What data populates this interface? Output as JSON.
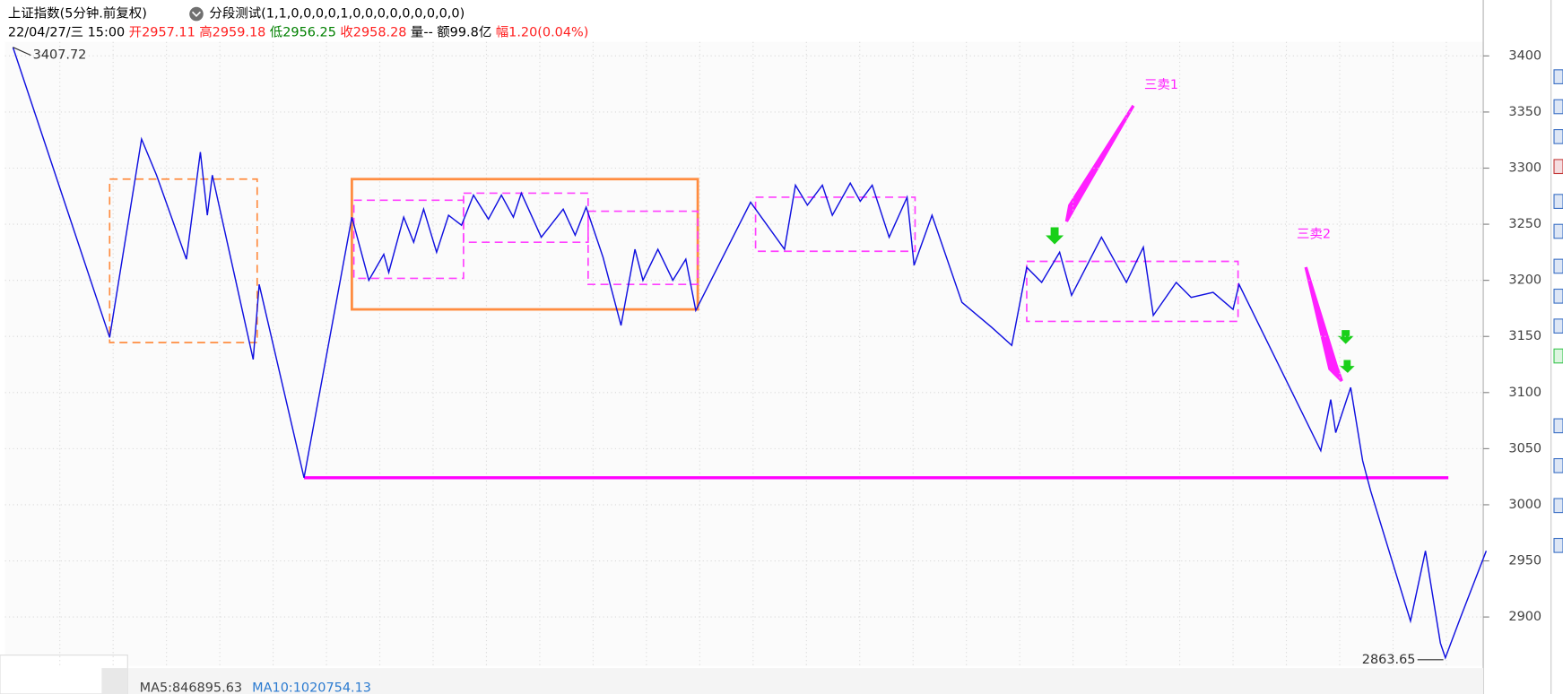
{
  "chart_data": {
    "type": "line",
    "header": {
      "title": "上证指数(5分钟.前复权)",
      "indicator": "分段测试(1,1,0,0,0,0,1,0,0,0,0,0,0,0,0,0)",
      "quote": [
        {
          "text": "22/04/27/三 15:00",
          "color": "#000000"
        },
        {
          "text": "开2957.11",
          "color": "#ff2020"
        },
        {
          "text": "高2959.18",
          "color": "#ff2020"
        },
        {
          "text": "低2956.25",
          "color": "#008000"
        },
        {
          "text": "收2958.28",
          "color": "#ff2020"
        },
        {
          "text": "量--",
          "color": "#000000"
        },
        {
          "text": "额99.8亿",
          "color": "#000000"
        },
        {
          "text": "幅1.20(0.04%)",
          "color": "#ff2020"
        }
      ]
    },
    "footer": [
      "MA5:846895.63",
      "MA10:1020754.13"
    ],
    "ylim": [
      2856.25,
      3412.5
    ],
    "yticks": [
      2900,
      2950,
      3000,
      3050,
      3100,
      3150,
      3200,
      3250,
      3300,
      3350,
      3400
    ],
    "xlim": [
      0,
      1483
    ],
    "grid": true,
    "x": [
      8,
      105,
      137,
      152,
      182,
      196,
      203,
      208,
      249,
      255,
      300,
      348,
      365,
      380,
      385,
      400,
      410,
      420,
      433,
      445,
      458,
      470,
      485,
      498,
      510,
      518,
      538,
      560,
      572,
      583,
      600,
      618,
      632,
      640,
      655,
      670,
      683,
      693,
      748,
      782,
      793,
      805,
      820,
      830,
      848,
      858,
      870,
      887,
      905,
      912,
      930,
      960,
      990,
      1010,
      1025,
      1040,
      1058,
      1070,
      1100,
      1125,
      1142,
      1152,
      1175,
      1190,
      1212,
      1232,
      1238,
      1320,
      1330,
      1335,
      1350,
      1362,
      1370,
      1410,
      1425,
      1440,
      1445,
      1460,
      1486
    ],
    "series": [
      {
        "color": "#1010e0",
        "values": [
          3407.72,
          3149.1,
          3325.9,
          3293.8,
          3218.8,
          3314.3,
          3258.0,
          3293.8,
          3129.5,
          3196.4,
          3024.1,
          3256.3,
          3200.0,
          3223.2,
          3207.1,
          3256.3,
          3233.9,
          3263.4,
          3225.0,
          3258.0,
          3249.1,
          3275.9,
          3254.5,
          3275.9,
          3256.3,
          3277.7,
          3238.4,
          3263.4,
          3240.2,
          3265.2,
          3220.5,
          3159.8,
          3227.7,
          3200.0,
          3227.7,
          3200.0,
          3218.8,
          3173.2,
          3269.6,
          3227.7,
          3284.8,
          3267.0,
          3284.8,
          3258.0,
          3286.6,
          3270.5,
          3284.8,
          3238.4,
          3274.1,
          3213.4,
          3258.0,
          3180.4,
          3158.0,
          3142.0,
          3211.6,
          3198.2,
          3225.0,
          3186.6,
          3238.4,
          3198.2,
          3229.5,
          3168.8,
          3198.2,
          3184.8,
          3189.3,
          3174.1,
          3196.4,
          3048.2,
          3093.8,
          3064.3,
          3104.5,
          3039.3,
          3012.5,
          2896.4,
          2958.9,
          2876.8,
          2863.65,
          2899.1,
          2958.9
        ]
      }
    ],
    "extreme_labels": {
      "high_index": 0,
      "low_index": 76
    },
    "hline": {
      "value": 3024.1,
      "x": [
        300,
        1448
      ],
      "color": "#ff00ff"
    },
    "zones": [
      {
        "x": [
          105,
          253
        ],
        "y": [
          3144.6,
          3290.2
        ],
        "color": "#ff8c40",
        "style": "dashed"
      },
      {
        "x": [
          348,
          695
        ],
        "y": [
          3174.1,
          3290.2
        ],
        "color": "#ff8c40",
        "style": "solid"
      },
      {
        "x": [
          350,
          460
        ],
        "y": [
          3201.8,
          3271.4
        ],
        "color": "#ff40ff",
        "style": "dashed"
      },
      {
        "x": [
          460,
          585
        ],
        "y": [
          3233.9,
          3277.7
        ],
        "color": "#ff40ff",
        "style": "dashed"
      },
      {
        "x": [
          585,
          695
        ],
        "y": [
          3196.4,
          3261.6
        ],
        "color": "#ff40ff",
        "style": "dashed"
      },
      {
        "x": [
          753,
          913
        ],
        "y": [
          3225.9,
          3274.1
        ],
        "color": "#ff40ff",
        "style": "dashed"
      },
      {
        "x": [
          1025,
          1237
        ],
        "y": [
          3163.4,
          3216.9
        ],
        "color": "#ff40ff",
        "style": "dashed"
      }
    ],
    "annotations": [
      {
        "text": "三卖1",
        "x": 1160,
        "y": 3374,
        "color": "#ff20ff"
      },
      {
        "text": "三卖2",
        "x": 1313,
        "y": 3241,
        "color": "#ff20ff"
      }
    ]
  }
}
